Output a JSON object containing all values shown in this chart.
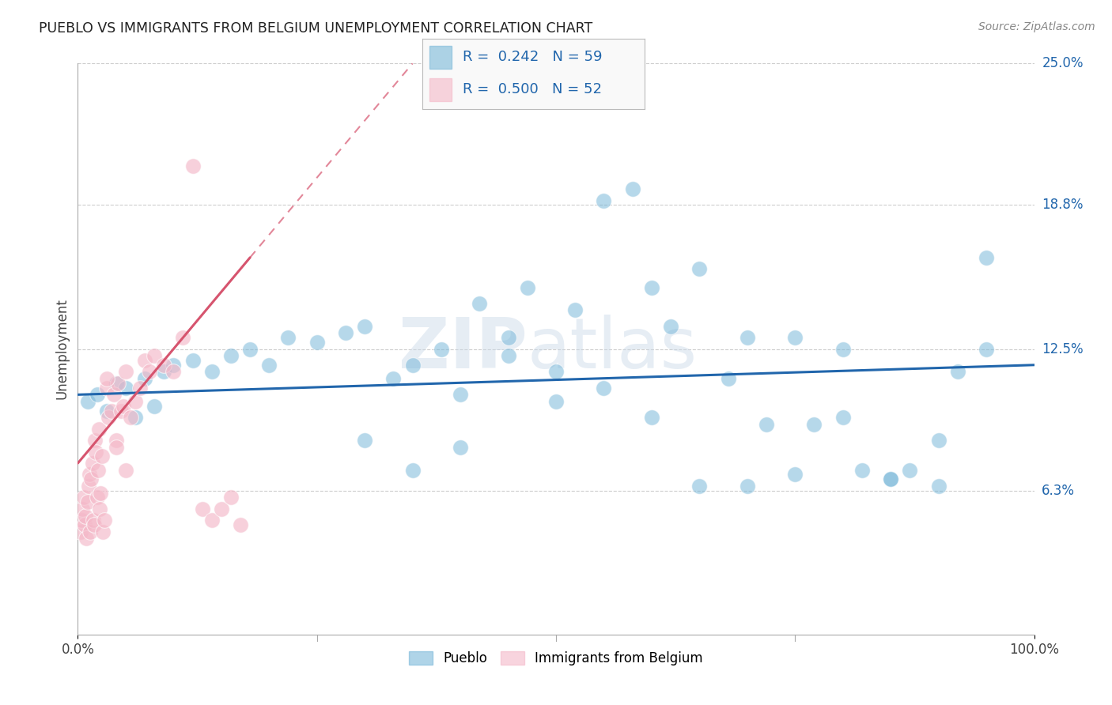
{
  "title": "PUEBLO VS IMMIGRANTS FROM BELGIUM UNEMPLOYMENT CORRELATION CHART",
  "source": "Source: ZipAtlas.com",
  "ylabel": "Unemployment",
  "watermark": "ZIPatlas",
  "legend_label1": "Pueblo",
  "legend_label2": "Immigrants from Belgium",
  "R1": 0.242,
  "N1": 59,
  "R2": 0.5,
  "N2": 52,
  "xmin": 0.0,
  "xmax": 100.0,
  "ymin": 0.0,
  "ymax": 25.0,
  "yticks": [
    0.0,
    6.3,
    12.5,
    18.8,
    25.0
  ],
  "xtick_labels": [
    "0.0%",
    "100.0%"
  ],
  "ytick_labels": [
    "",
    "6.3%",
    "12.5%",
    "18.8%",
    "25.0%"
  ],
  "blue_color": "#7ab8d9",
  "pink_color": "#f4b8c8",
  "blue_line_color": "#2166ac",
  "pink_line_color": "#d6546e",
  "background_color": "#ffffff",
  "grid_color": "#c8c8c8",
  "blue_scatter_x": [
    1,
    2,
    3,
    4,
    5,
    6,
    7,
    8,
    9,
    10,
    12,
    14,
    16,
    18,
    20,
    22,
    25,
    28,
    30,
    33,
    35,
    38,
    40,
    42,
    45,
    47,
    50,
    52,
    55,
    58,
    60,
    62,
    65,
    68,
    70,
    72,
    75,
    77,
    80,
    82,
    85,
    87,
    90,
    92,
    95,
    50,
    55,
    60,
    65,
    70,
    75,
    80,
    85,
    90,
    95,
    30,
    35,
    40,
    45
  ],
  "blue_scatter_y": [
    10.2,
    10.5,
    9.8,
    11.0,
    10.8,
    9.5,
    11.2,
    10.0,
    11.5,
    11.8,
    12.0,
    11.5,
    12.2,
    12.5,
    11.8,
    13.0,
    12.8,
    13.2,
    13.5,
    11.2,
    11.8,
    12.5,
    10.5,
    14.5,
    13.0,
    15.2,
    11.5,
    14.2,
    19.0,
    19.5,
    15.2,
    13.5,
    16.0,
    11.2,
    13.0,
    9.2,
    13.0,
    9.2,
    12.5,
    7.2,
    6.8,
    7.2,
    8.5,
    11.5,
    16.5,
    10.2,
    10.8,
    9.5,
    6.5,
    6.5,
    7.0,
    9.5,
    6.8,
    6.5,
    12.5,
    8.5,
    7.2,
    8.2,
    12.2
  ],
  "pink_scatter_x": [
    0.3,
    0.4,
    0.5,
    0.6,
    0.7,
    0.8,
    0.9,
    1.0,
    1.1,
    1.2,
    1.3,
    1.4,
    1.5,
    1.6,
    1.7,
    1.8,
    1.9,
    2.0,
    2.1,
    2.2,
    2.3,
    2.4,
    2.5,
    2.6,
    2.8,
    3.0,
    3.2,
    3.5,
    3.8,
    4.0,
    4.2,
    4.5,
    4.8,
    5.0,
    5.5,
    6.0,
    6.5,
    7.0,
    7.5,
    8.0,
    9.0,
    10.0,
    11.0,
    12.0,
    13.0,
    14.0,
    15.0,
    16.0,
    17.0,
    3.0,
    4.0,
    5.0
  ],
  "pink_scatter_y": [
    4.5,
    5.0,
    5.5,
    6.0,
    4.8,
    5.2,
    4.2,
    5.8,
    6.5,
    7.0,
    4.5,
    6.8,
    7.5,
    5.0,
    4.8,
    8.5,
    8.0,
    6.0,
    7.2,
    9.0,
    5.5,
    6.2,
    7.8,
    4.5,
    5.0,
    10.8,
    9.5,
    9.8,
    10.5,
    8.5,
    11.0,
    9.8,
    10.0,
    11.5,
    9.5,
    10.2,
    10.8,
    12.0,
    11.5,
    12.2,
    11.8,
    11.5,
    13.0,
    20.5,
    5.5,
    5.0,
    5.5,
    6.0,
    4.8,
    11.2,
    8.2,
    7.2
  ],
  "blue_line_start_y": 10.5,
  "blue_line_end_y": 11.8,
  "pink_line_x0": 0.0,
  "pink_line_x1": 18.0,
  "pink_line_y0": 7.5,
  "pink_line_y1": 16.5
}
